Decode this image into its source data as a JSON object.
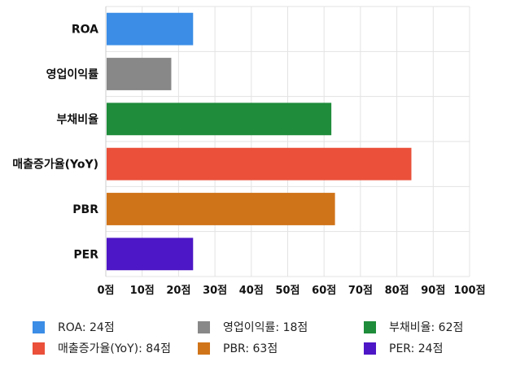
{
  "chart_data": {
    "type": "bar",
    "orientation": "horizontal",
    "categories": [
      "ROA",
      "영업이익률",
      "부채비율",
      "매출증가율(YoY)",
      "PBR",
      "PER"
    ],
    "values": [
      24,
      18,
      62,
      84,
      63,
      24
    ],
    "colors": [
      "#3b8de6",
      "#888888",
      "#1e8c3a",
      "#ea503a",
      "#d07419",
      "#4d16c6"
    ],
    "xlim": [
      0,
      100
    ],
    "x_ticks": [
      "0점",
      "10점",
      "20점",
      "30점",
      "40점",
      "50점",
      "60점",
      "70점",
      "80점",
      "90점",
      "100점"
    ],
    "grid": true,
    "legend_position": "bottom",
    "legend": [
      {
        "label": "ROA: 24점",
        "color": "#3b8de6"
      },
      {
        "label": "영업이익률: 18점",
        "color": "#888888"
      },
      {
        "label": "부채비율: 62점",
        "color": "#1e8c3a"
      },
      {
        "label": "매출증가율(YoY): 84점",
        "color": "#ea503a"
      },
      {
        "label": "PBR: 63점",
        "color": "#d07419"
      },
      {
        "label": "PER: 24점",
        "color": "#4d16c6"
      }
    ]
  }
}
